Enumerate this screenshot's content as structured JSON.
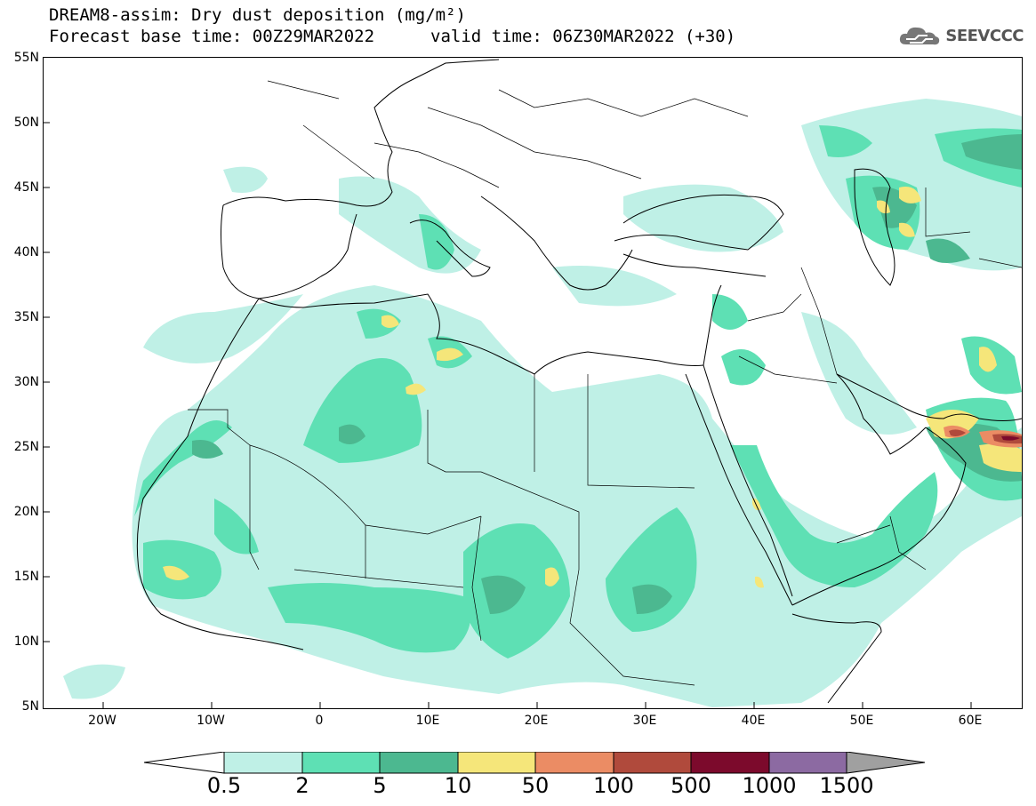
{
  "title": {
    "line1": "DREAM8-assim: Dry dust deposition (mg/m²)",
    "base_time": "Forecast base time: 00Z29MAR2022",
    "valid_time": "valid time: 06Z30MAR2022 (+30)"
  },
  "logo": {
    "text": "SEEVCCC",
    "icon": "cloud-icon"
  },
  "lat_labels": [
    "55N",
    "50N",
    "45N",
    "40N",
    "35N",
    "30N",
    "25N",
    "20N",
    "15N",
    "10N",
    "5N"
  ],
  "lon_labels": [
    "20W",
    "10W",
    "0",
    "10E",
    "20E",
    "30E",
    "40E",
    "50E",
    "60E"
  ],
  "legend": {
    "labels": [
      "0.5",
      "2",
      "5",
      "10",
      "50",
      "100",
      "500",
      "1000",
      "1500"
    ],
    "colors": [
      "#ffffff",
      "#bff0e6",
      "#5ee0b4",
      "#4cb890",
      "#f5e67a",
      "#eb8c64",
      "#b04a3c",
      "#7c0a2c",
      "#8c6aa2",
      "#a0a0a0"
    ]
  },
  "colors": {
    "level1": "#bff0e6",
    "level2": "#5ee0b4",
    "level3": "#4cb890",
    "level4": "#f5e67a",
    "level5": "#eb8c64",
    "level6": "#b04a3c",
    "level7": "#7c0a2c"
  }
}
